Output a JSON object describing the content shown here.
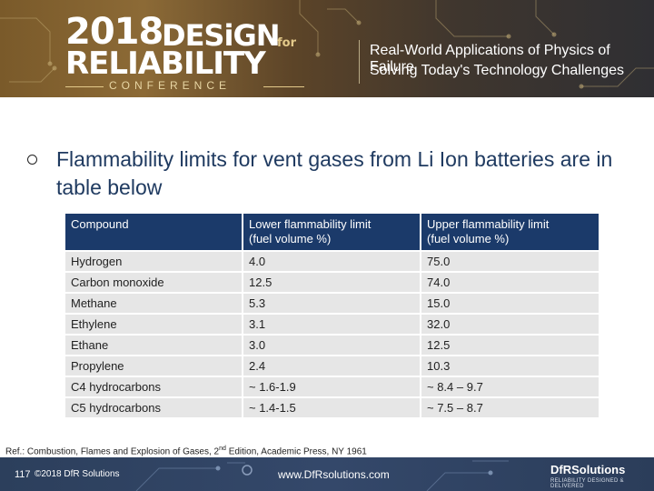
{
  "header": {
    "logo_year": "2018",
    "logo_design": "DESiGN",
    "logo_for": "for",
    "logo_reliability": "RELIABILITY",
    "logo_conference": "CONFERENCE",
    "tagline_line1": "Real-World Applications of Physics of Failure",
    "tagline_line2": "Solving Today's Technology Challenges"
  },
  "slide": {
    "heading": "Flammability limits for vent gases from Li Ion batteries are in table below",
    "reference_prefix": "Ref.: Combustion, Flames and Explosion of Gases, 2",
    "reference_sup": "nd",
    "reference_suffix": " Edition, Academic Press, NY 1961"
  },
  "table": {
    "headers": [
      [
        "Compound"
      ],
      [
        "Lower flammability limit",
        "(fuel volume %)"
      ],
      [
        "Upper flammability limit",
        "(fuel volume %)"
      ]
    ],
    "rows": [
      [
        "Hydrogen",
        "4.0",
        "75.0"
      ],
      [
        "Carbon monoxide",
        "12.5",
        "74.0"
      ],
      [
        "Methane",
        "5.3",
        "15.0"
      ],
      [
        "Ethylene",
        "3.1",
        "32.0"
      ],
      [
        "Ethane",
        "3.0",
        "12.5"
      ],
      [
        "Propylene",
        "2.4",
        "10.3"
      ],
      [
        "C4 hydrocarbons",
        "~ 1.6-1.9",
        "~ 8.4 – 9.7"
      ],
      [
        "C5 hydrocarbons",
        "~ 1.4-1.5",
        "~ 7.5 – 8.7"
      ]
    ]
  },
  "footer": {
    "page_number": "117",
    "copyright": "©2018 DfR Solutions",
    "url": "www.DfRsolutions.com",
    "brand": "DfRSolutions",
    "brand_tagline": "RELIABILITY DESIGNED & DELIVERED"
  },
  "colors": {
    "table_header_bg": "#1b3a6a",
    "table_cell_bg": "#e6e6e6",
    "heading_text": "#1f3a60",
    "footer_bg": "#2c3f5c"
  }
}
